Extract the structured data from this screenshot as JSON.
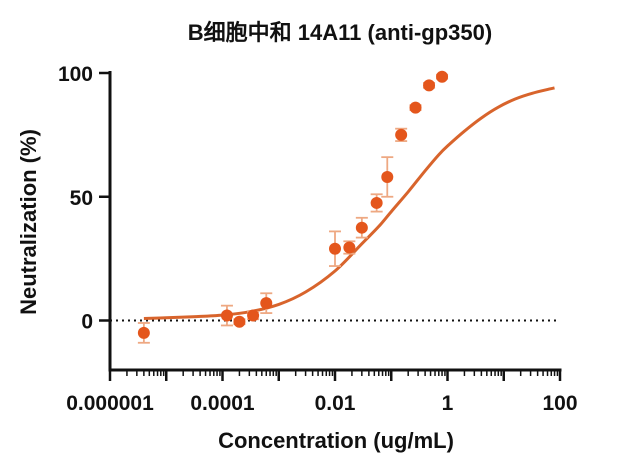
{
  "chart_data": {
    "type": "scatter",
    "title": "B细胞中和 14A11 (anti-gp350)",
    "xlabel": "Concentration (ug/mL)",
    "ylabel": "Neutralization (%)",
    "x_scale": "log",
    "xlim": [
      1e-06,
      100
    ],
    "ylim": [
      -20,
      100
    ],
    "x_ticks": [
      1e-06,
      1e-05,
      0.0001,
      0.001,
      0.01,
      0.1,
      1,
      10,
      100
    ],
    "x_tick_labels": [
      "0.000001",
      "0.0001",
      "0.01",
      "1",
      "100"
    ],
    "x_tick_label_values": [
      1e-06,
      0.0001,
      0.01,
      1,
      100
    ],
    "y_ticks": [
      0,
      50,
      100
    ],
    "y_tick_labels": [
      "0",
      "50",
      "100"
    ],
    "reference_line": {
      "y": 0,
      "style": "dotted"
    },
    "colors": {
      "points": "#e4561c",
      "fit": "#d8642c",
      "error_bars": "#eea882"
    },
    "series": [
      {
        "points": [
          {
            "x": 4e-06,
            "y": -5,
            "err": 4
          },
          {
            "x": 0.00012,
            "y": 2,
            "err": 4
          },
          {
            "x": 0.0002,
            "y": -0.5,
            "err": 1
          },
          {
            "x": 0.00035,
            "y": 2,
            "err": 1.5
          },
          {
            "x": 0.0006,
            "y": 7,
            "err": 4
          },
          {
            "x": 0.01,
            "y": 29,
            "err": 7
          },
          {
            "x": 0.018,
            "y": 29.5,
            "err": 2.5
          },
          {
            "x": 0.03,
            "y": 37.5,
            "err": 4
          },
          {
            "x": 0.055,
            "y": 47.5,
            "err": 3.5
          },
          {
            "x": 0.085,
            "y": 58,
            "err": 8
          },
          {
            "x": 0.15,
            "y": 75,
            "err": 2.5
          },
          {
            "x": 0.27,
            "y": 86,
            "err": 1
          },
          {
            "x": 0.47,
            "y": 95,
            "err": 1
          },
          {
            "x": 0.8,
            "y": 98.5,
            "err": 0.8
          }
        ]
      }
    ],
    "fit_curve": {
      "x": [
        4e-06,
        1e-05,
        3e-05,
        0.0001,
        0.0003,
        0.001,
        0.003,
        0.01,
        0.03,
        0.06,
        0.1,
        0.2,
        0.4,
        0.7,
        1,
        2,
        4,
        8,
        16,
        32,
        64,
        80
      ],
      "y": [
        0.8,
        1.1,
        1.5,
        2.2,
        3.5,
        6.5,
        11.5,
        20,
        31,
        38,
        44,
        52,
        60.5,
        67,
        70.5,
        76.5,
        81.8,
        86.2,
        89.5,
        91.8,
        93.5,
        94
      ]
    }
  }
}
